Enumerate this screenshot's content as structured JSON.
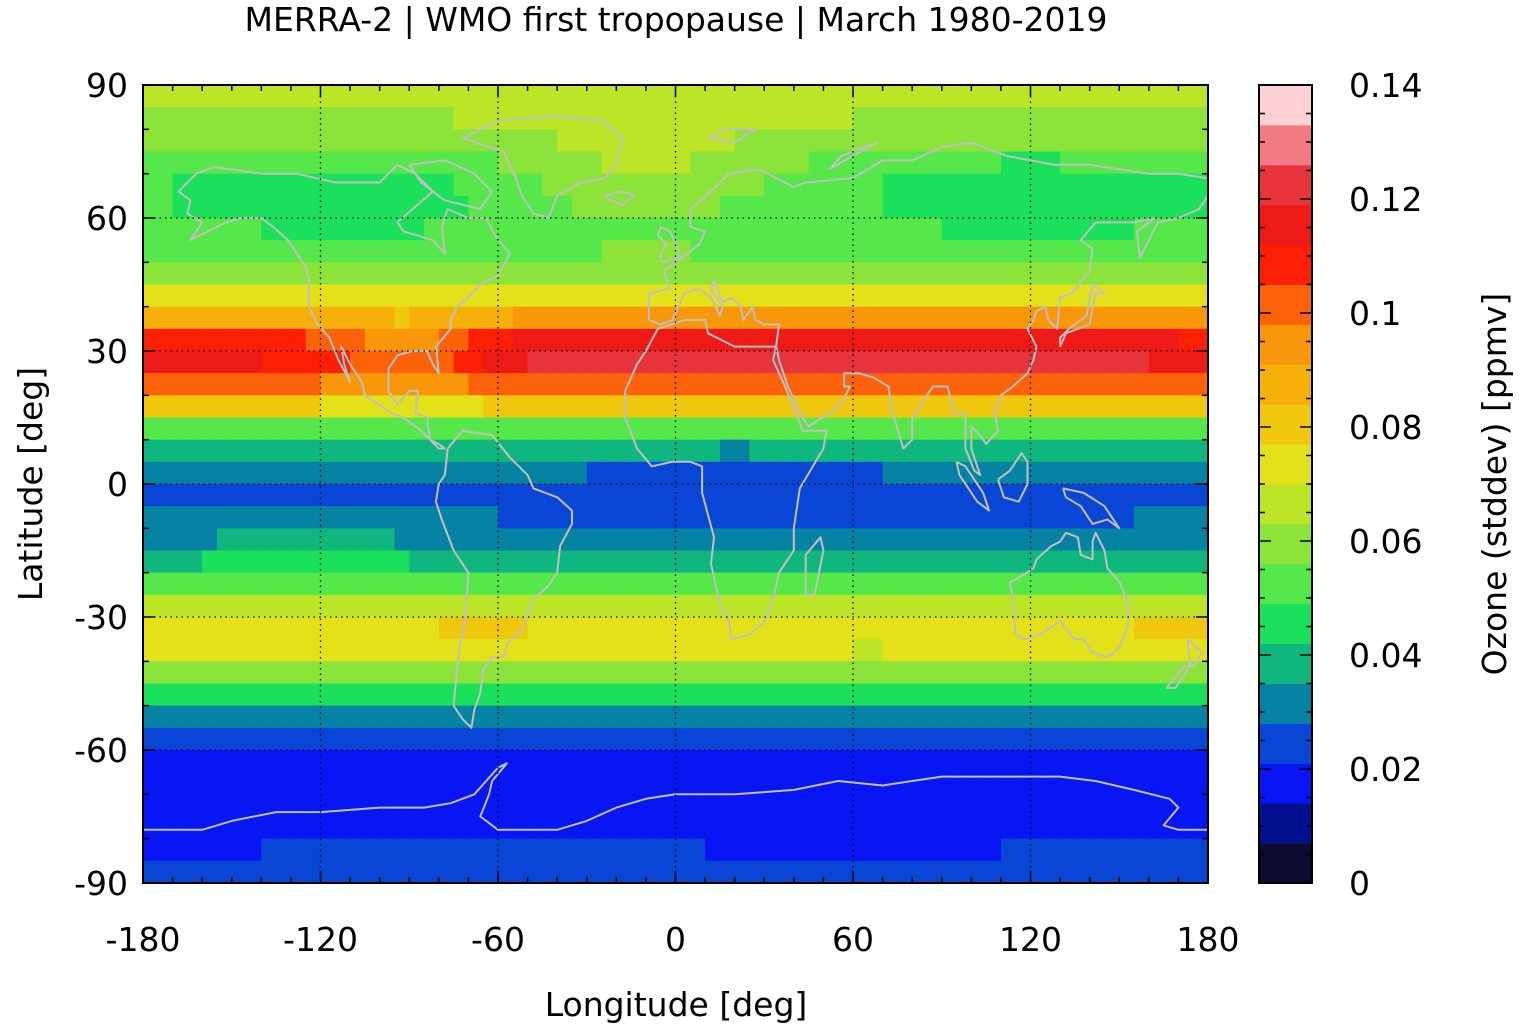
{
  "chart_data": {
    "type": "heatmap",
    "title": "MERRA-2 | WMO first tropopause | March 1980-2019",
    "xlabel": "Longitude [deg]",
    "ylabel": "Latitude [deg]",
    "colorbar_label": "Ozone (stddev) [ppmv]",
    "xlim": [
      -180,
      180
    ],
    "ylim": [
      -90,
      90
    ],
    "xticks": [
      -180,
      -120,
      -60,
      0,
      60,
      120,
      180
    ],
    "yticks": [
      -90,
      -60,
      -30,
      0,
      30,
      60,
      90
    ],
    "xtick_labels": [
      "-180",
      "-120",
      "-60",
      "0",
      "60",
      "120",
      "180"
    ],
    "ytick_labels": [
      "-90",
      "-60",
      "-30",
      "0",
      "30",
      "60",
      "90"
    ],
    "clim": [
      0,
      0.14
    ],
    "colorbar_ticks": [
      0,
      0.02,
      0.04,
      0.06,
      0.08,
      0.1,
      0.12,
      0.14
    ],
    "colorbar_tick_labels": [
      "0",
      "0.02",
      "0.04",
      "0.06",
      "0.08",
      "0.1",
      "0.12",
      "0.14"
    ],
    "colorbar_colors": [
      "#0b0c30",
      "#03118f",
      "#0716f2",
      "#0946d6",
      "#0682a2",
      "#0fb67e",
      "#1ae05b",
      "#56e84a",
      "#8ce33a",
      "#bde527",
      "#e3e21a",
      "#f0c70f",
      "#f7b00a",
      "#f9970a",
      "#fb6209",
      "#fb1f06",
      "#ee1a17",
      "#e7333a",
      "#f27b83",
      "#fdd0d3"
    ],
    "grid": true,
    "zonal_profile_by_latitude": {
      "latitudes": [
        90,
        85,
        80,
        75,
        70,
        65,
        60,
        55,
        50,
        45,
        40,
        35,
        30,
        25,
        20,
        15,
        10,
        5,
        0,
        -5,
        -10,
        -15,
        -20,
        -25,
        -30,
        -35,
        -40,
        -45,
        -50,
        -55,
        -60,
        -65,
        -70,
        -75,
        -80,
        -85,
        -90
      ],
      "ozone_stddev": [
        0.07,
        0.065,
        0.06,
        0.055,
        0.05,
        0.05,
        0.05,
        0.052,
        0.058,
        0.065,
        0.08,
        0.1,
        0.115,
        0.11,
        0.09,
        0.065,
        0.045,
        0.03,
        0.028,
        0.026,
        0.03,
        0.035,
        0.045,
        0.06,
        0.07,
        0.075,
        0.065,
        0.05,
        0.035,
        0.028,
        0.022,
        0.018,
        0.017,
        0.018,
        0.019,
        0.023,
        0.03
      ]
    }
  }
}
